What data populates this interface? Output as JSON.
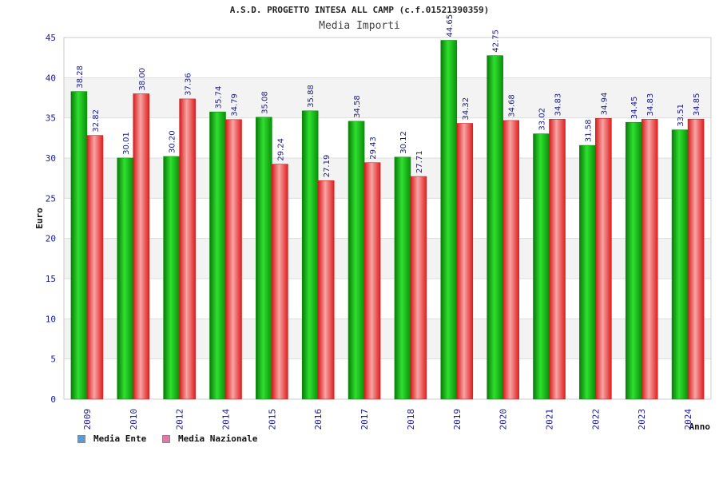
{
  "chart_data": {
    "type": "bar",
    "title": "A.S.D. PROGETTO INTESA ALL CAMP (c.f.01521390359)",
    "subtitle": "Media Importi",
    "xlabel": "Anno",
    "ylabel": "Euro",
    "ylim": [
      0,
      45
    ],
    "yticks": [
      0,
      5,
      10,
      15,
      20,
      25,
      30,
      35,
      40,
      45
    ],
    "grid": true,
    "legend_position": "bottom-left",
    "categories": [
      "2009",
      "2010",
      "2012",
      "2014",
      "2015",
      "2016",
      "2017",
      "2018",
      "2019",
      "2020",
      "2021",
      "2022",
      "2023",
      "2024"
    ],
    "series": [
      {
        "name": "Media Ente",
        "color": "#12b312",
        "legend_color": "#5b9bd5",
        "values": [
          38.28,
          30.01,
          30.2,
          35.74,
          35.08,
          35.88,
          34.58,
          30.12,
          44.65,
          42.75,
          33.02,
          31.58,
          34.45,
          33.51
        ],
        "labels": [
          "38.28",
          "30.01",
          "30.20",
          "35.74",
          "35.08",
          "35.88",
          "34.58",
          "30.12",
          "44.65",
          "42.75",
          "33.02",
          "31.58",
          "34.45",
          "33.51"
        ]
      },
      {
        "name": "Media Nazionale",
        "color": "#e83a3a",
        "legend_color": "#e377a8",
        "values": [
          32.82,
          38.0,
          37.36,
          34.79,
          29.24,
          27.19,
          29.43,
          27.71,
          34.32,
          34.68,
          34.83,
          34.94,
          34.83,
          34.85
        ],
        "labels": [
          "32.82",
          "38.00",
          "37.36",
          "34.79",
          "29.24",
          "27.19",
          "29.43",
          "27.71",
          "34.32",
          "34.68",
          "34.83",
          "34.94",
          "34.83",
          "34.85"
        ]
      }
    ]
  }
}
